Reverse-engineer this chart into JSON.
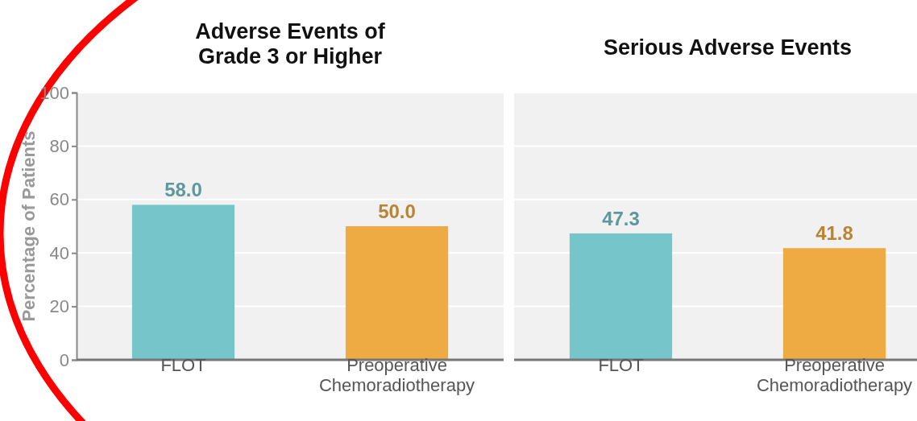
{
  "chart_data": [
    {
      "type": "bar",
      "title": "Adverse Events of Grade 3 or Higher",
      "ylabel": "Percentage of Patients",
      "categories": [
        "FLOT",
        "Preoperative Chemoradiotherapy"
      ],
      "values": [
        58.0,
        50.0
      ],
      "value_labels": [
        "58.0",
        "50.0"
      ],
      "colors": [
        "#75c5cb",
        "#eeab43"
      ],
      "ylim": [
        0,
        100
      ],
      "yticks": [
        0,
        20,
        40,
        60,
        80,
        100
      ],
      "grid": "y"
    },
    {
      "type": "bar",
      "title": "Serious Adverse Events",
      "categories": [
        "FLOT",
        "Preoperative Chemoradiotherapy"
      ],
      "values": [
        47.3,
        41.8
      ],
      "value_labels": [
        "47.3",
        "41.8"
      ],
      "colors": [
        "#75c5cb",
        "#eeab43"
      ],
      "ylim": [
        0,
        100
      ],
      "yticks": [
        0,
        20,
        40,
        60,
        80,
        100
      ],
      "grid": "y",
      "tick_labels": "x"
    }
  ]
}
